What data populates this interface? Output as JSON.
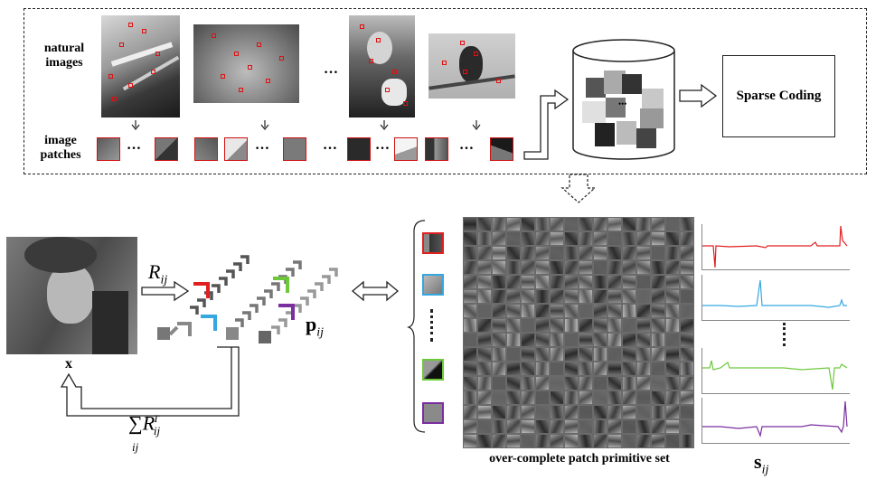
{
  "labels": {
    "natural_images": "natural\nimages",
    "image_patches": "image\npatches",
    "sparse_coding": "Sparse Coding",
    "dictionary_caption": "over-complete patch primitive set",
    "ellipsis": "…",
    "db_dots": "•••"
  },
  "math": {
    "R": "R",
    "R_sub": "ij",
    "x": "x",
    "p": "p",
    "p_sub": "ij",
    "sum": "∑",
    "sum_sub": "ij",
    "RT": "R",
    "RT_sub": "ij",
    "RT_sup": "T",
    "s": "s",
    "s_sub": "ij"
  },
  "colors": {
    "red": "#e02020",
    "blue": "#35a8e0",
    "green": "#6cc83a",
    "purple": "#7a2ea0",
    "box_red": "#e01010"
  },
  "icons": {
    "db": "database-cylinder-icon",
    "arrow": "outline-arrow-icon"
  }
}
